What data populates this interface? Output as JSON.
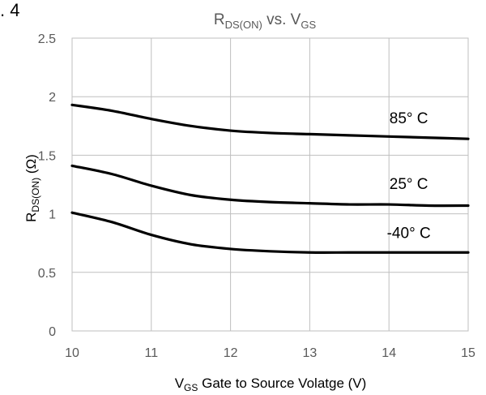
{
  "figure_label": ". 4",
  "chart_data": {
    "type": "line",
    "title": {
      "main": "R",
      "main_sub": "DS(ON)",
      "mid": " vs. V",
      "mid_sub": "GS"
    },
    "xlabel": {
      "main": "V",
      "main_sub": "GS",
      "rest": " Gate to Source Volatge (V)"
    },
    "ylabel": {
      "main": "R",
      "main_sub": "DS(ON)",
      "rest": " (Ω)"
    },
    "xlim": [
      10,
      15
    ],
    "ylim": [
      0,
      2.5
    ],
    "x_ticks": [
      10,
      11,
      12,
      13,
      14,
      15
    ],
    "y_ticks": [
      0,
      0.5,
      1,
      1.5,
      2,
      2.5
    ],
    "grid": true,
    "series": [
      {
        "name": "85° C",
        "x": [
          10,
          10.5,
          11,
          11.5,
          12,
          12.5,
          13,
          13.5,
          14,
          14.5,
          15
        ],
        "y": [
          1.93,
          1.88,
          1.81,
          1.75,
          1.71,
          1.69,
          1.68,
          1.67,
          1.66,
          1.65,
          1.64
        ]
      },
      {
        "name": "25° C",
        "x": [
          10,
          10.5,
          11,
          11.5,
          12,
          12.5,
          13,
          13.5,
          14,
          14.5,
          15
        ],
        "y": [
          1.41,
          1.34,
          1.24,
          1.16,
          1.12,
          1.1,
          1.09,
          1.08,
          1.08,
          1.07,
          1.07
        ]
      },
      {
        "name": "-40° C",
        "x": [
          10,
          10.5,
          11,
          11.5,
          12,
          12.5,
          13,
          13.5,
          14,
          14.5,
          15
        ],
        "y": [
          1.01,
          0.93,
          0.82,
          0.74,
          0.7,
          0.68,
          0.67,
          0.67,
          0.67,
          0.67,
          0.67
        ]
      }
    ],
    "series_label_values": [
      {
        "x": 14.25,
        "y": 1.82
      },
      {
        "x": 14.25,
        "y": 1.26
      },
      {
        "x": 14.25,
        "y": 0.84
      }
    ],
    "line_color": "#000000",
    "grid_color": "#bfbfbf",
    "text_color": "#595959"
  }
}
